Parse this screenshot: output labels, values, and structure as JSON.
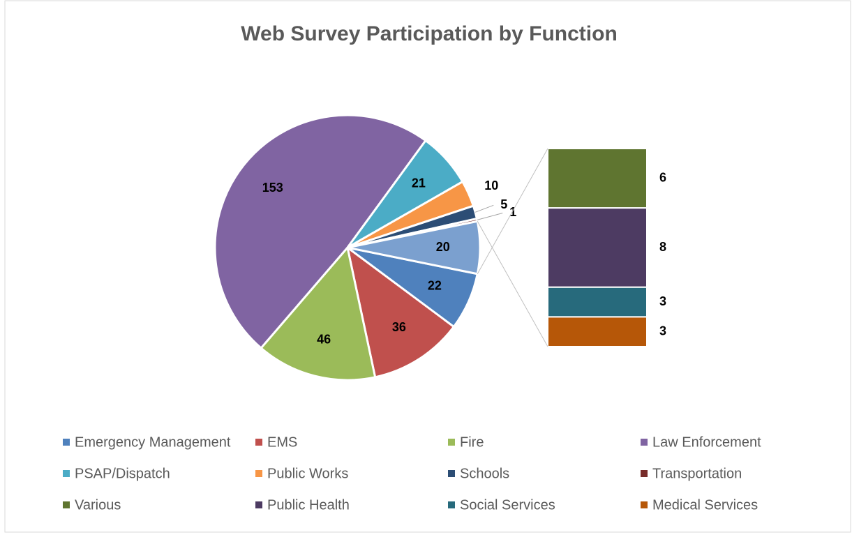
{
  "chart_data": {
    "type": "bar_of_pie",
    "title": "Web Survey Participation by Function",
    "categories": [
      "Emergency Management",
      "EMS",
      "Fire",
      "Law Enforcement",
      "PSAP/Dispatch",
      "Public Works",
      "Schools",
      "Transportation",
      "Various",
      "Public Health",
      "Social Services",
      "Medical Services"
    ],
    "values": [
      22,
      36,
      46,
      153,
      21,
      10,
      5,
      1,
      6,
      8,
      3,
      3
    ],
    "colors": [
      "#4f81bd",
      "#c0504d",
      "#9bbb59",
      "#8064a2",
      "#4bacc6",
      "#f79646",
      "#2c4d75",
      "#772c2a",
      "#5f7530",
      "#4d3b62",
      "#276a7c",
      "#b65708"
    ],
    "second_plot_count": 4,
    "other_value": 20,
    "legend": "bottom"
  }
}
